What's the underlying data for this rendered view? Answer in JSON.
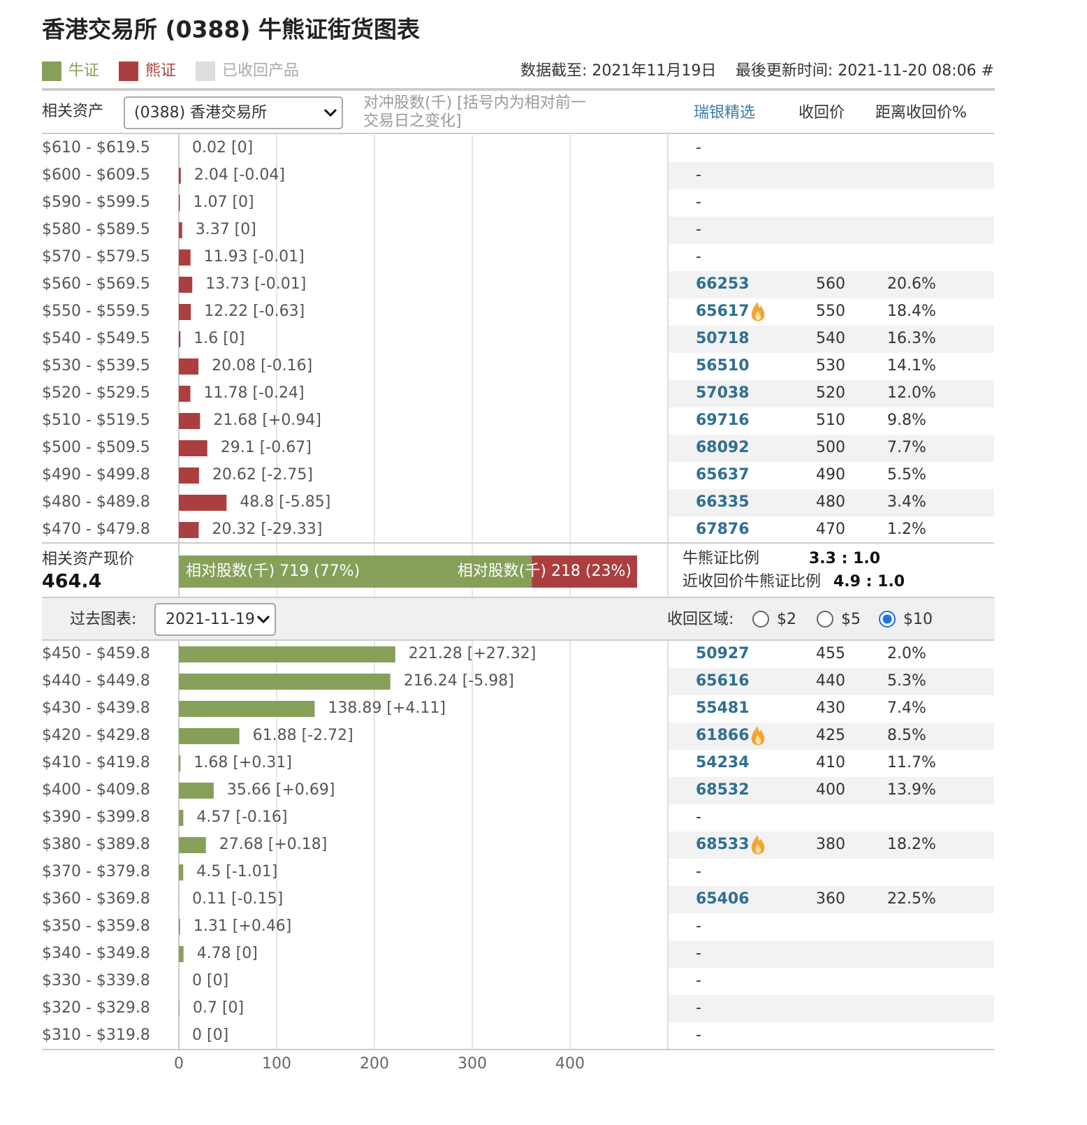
{
  "header": {
    "title": "香港交易所 (0388) 牛熊证街货图表",
    "recalled_legend": {
      "label": "已收回产品",
      "color": "#dddddd"
    },
    "data_date": "数据截至: 2021年11月19日",
    "updated": "最後更新时间: 2021-11-20 08:06 #"
  },
  "controls": {
    "asset_label": "相关资产",
    "asset_select": "(0388) 香港交易所",
    "column_note": [
      "对冲股数(千) [括号内为相对前一",
      "交易日之变化]"
    ],
    "columns": [
      "瑞银精选",
      "收回价",
      "距离收回价%"
    ]
  },
  "chart_data": {
    "type": "bar",
    "xlim": [
      0,
      500
    ],
    "xticks": [
      0,
      100,
      200,
      300,
      400
    ],
    "grid": true,
    "series": [
      {
        "name": "牛证",
        "color": "#86a05a",
        "categories": [
          "$450 - $459.8",
          "$440 - $449.8",
          "$430 - $439.8",
          "$420 - $429.8",
          "$410 - $419.8",
          "$400 - $409.8",
          "$390 - $399.8",
          "$380 - $389.8",
          "$370 - $379.8",
          "$360 - $369.8",
          "$350 - $359.8",
          "$340 - $349.8",
          "$330 - $339.8",
          "$320 - $329.8",
          "$310 - $319.8"
        ],
        "values": [
          221.28,
          216.24,
          138.89,
          61.88,
          1.68,
          35.66,
          4.57,
          27.68,
          4.5,
          0.11,
          1.31,
          4.78,
          0,
          0.7,
          0
        ],
        "value_labels": [
          "221.28 [+27.32]",
          "216.24 [-5.98]",
          "138.89 [+4.11]",
          "61.88 [-2.72]",
          "1.68 [+0.31]",
          "35.66 [+0.69]",
          "4.57 [-0.16]",
          "27.68 [+0.18]",
          "4.5 [-1.01]",
          "0.11 [-0.15]",
          "1.31 [+0.46]",
          "4.78 [0]",
          "0 [0]",
          "0.7 [0]",
          "0 [0]"
        ]
      },
      {
        "name": "熊证",
        "color": "#ab3f3f",
        "categories": [
          "$610 - $619.5",
          "$600 - $609.5",
          "$590 - $599.5",
          "$580 - $589.5",
          "$570 - $579.5",
          "$560 - $569.5",
          "$550 - $559.5",
          "$540 - $549.5",
          "$530 - $539.5",
          "$520 - $529.5",
          "$510 - $519.5",
          "$500 - $509.5",
          "$490 - $499.8",
          "$480 - $489.8",
          "$470 - $479.8"
        ],
        "values": [
          0.02,
          2.04,
          1.07,
          3.37,
          11.93,
          13.73,
          12.22,
          1.6,
          20.08,
          11.78,
          21.68,
          29.1,
          20.62,
          48.8,
          20.32
        ],
        "value_labels": [
          "0.02 [0]",
          "2.04 [-0.04]",
          "1.07 [0]",
          "3.37 [0]",
          "11.93 [-0.01]",
          "13.73 [-0.01]",
          "12.22 [-0.63]",
          "1.6 [0]",
          "20.08 [-0.16]",
          "11.78 [-0.24]",
          "21.68 [+0.94]",
          "29.1 [-0.67]",
          "20.62 [-2.75]",
          "48.8 [-5.85]",
          "20.32 [-29.33]"
        ]
      }
    ]
  },
  "warrants": {
    "bull": [
      {
        "code": "50927",
        "price": 455,
        "distance": "2.0%"
      },
      {
        "code": "65616",
        "price": 440,
        "distance": "5.3%"
      },
      {
        "code": "55481",
        "price": 430,
        "distance": "7.4%"
      },
      {
        "code": "61866",
        "hot": true,
        "price": 425,
        "distance": "8.5%"
      },
      {
        "code": "54234",
        "price": 410,
        "distance": "11.7%"
      },
      {
        "code": "68532",
        "price": 400,
        "distance": "13.9%"
      },
      {
        "code": "-"
      },
      {
        "code": "68533",
        "hot": true,
        "price": 380,
        "distance": "18.2%"
      },
      {
        "code": "-"
      },
      {
        "code": "65406",
        "price": 360,
        "distance": "22.5%"
      },
      {
        "code": "-"
      },
      {
        "code": "-"
      },
      {
        "code": "-"
      },
      {
        "code": "-"
      },
      {
        "code": "-"
      }
    ],
    "bear": [
      {
        "code": "-"
      },
      {
        "code": "-"
      },
      {
        "code": "-"
      },
      {
        "code": "-"
      },
      {
        "code": "-"
      },
      {
        "code": "66253",
        "price": 560,
        "distance": "20.6%"
      },
      {
        "code": "65617",
        "hot": true,
        "price": 550,
        "distance": "18.4%"
      },
      {
        "code": "50718",
        "price": 540,
        "distance": "16.3%"
      },
      {
        "code": "56510",
        "price": 530,
        "distance": "14.1%"
      },
      {
        "code": "57038",
        "price": 520,
        "distance": "12.0%"
      },
      {
        "code": "69716",
        "price": 510,
        "distance": "9.8%"
      },
      {
        "code": "68092",
        "price": 500,
        "distance": "7.7%"
      },
      {
        "code": "65637",
        "price": 490,
        "distance": "5.5%"
      },
      {
        "code": "66335",
        "price": 480,
        "distance": "3.4%"
      },
      {
        "code": "67876",
        "price": 470,
        "distance": "1.2%"
      }
    ]
  },
  "summary": {
    "spot_label": "相关资产现价",
    "spot": 464.4,
    "bull": {
      "label": "相对股数(千) 719 (77%)",
      "percent": 77
    },
    "bear": {
      "label": "相对股数(千) 218 (23%)",
      "percent": 23
    },
    "ratio_label": "牛熊证比例",
    "ratio": "3.3 : 1.0",
    "near_ratio_label": "近收回价牛熊证比例",
    "near_ratio": "4.9 : 1.0"
  },
  "history": {
    "label": "过去图表:",
    "date": "2021-11-19",
    "range_label": "收回区域:",
    "ranges": [
      "$2",
      "$5",
      "$10"
    ],
    "selected": 2
  }
}
